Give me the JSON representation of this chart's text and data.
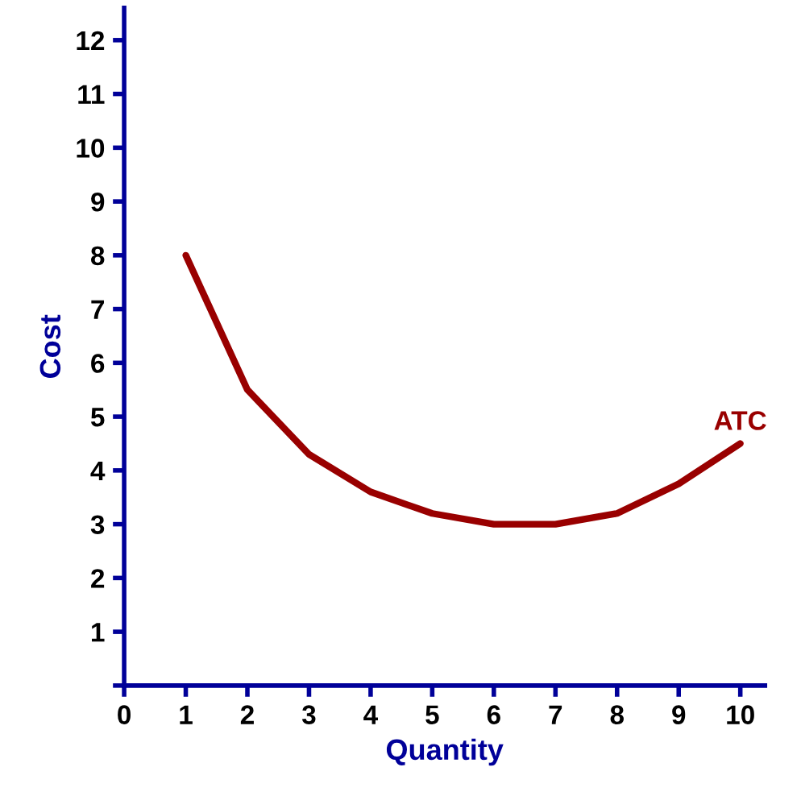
{
  "chart_data": {
    "type": "line",
    "xlabel": "Quantity",
    "ylabel": "Cost",
    "x": [
      1,
      2,
      3,
      4,
      5,
      6,
      7,
      8,
      9,
      10
    ],
    "series": [
      {
        "name": "ATC",
        "color": "#990000",
        "values": [
          8,
          5.5,
          4.3,
          3.6,
          3.2,
          3.0,
          3.0,
          3.2,
          3.75,
          4.5
        ]
      }
    ],
    "xlim": [
      0,
      10.4
    ],
    "ylim": [
      0,
      12.6
    ],
    "xticks": [
      0,
      1,
      2,
      3,
      4,
      5,
      6,
      7,
      8,
      9,
      10
    ],
    "yticks": [
      {
        "value": 0,
        "label": null
      },
      1,
      2,
      3,
      4,
      5,
      6,
      7,
      8,
      9,
      10,
      11,
      12
    ],
    "grid": false,
    "marker": "none",
    "line_style": "solid",
    "legend": false
  }
}
